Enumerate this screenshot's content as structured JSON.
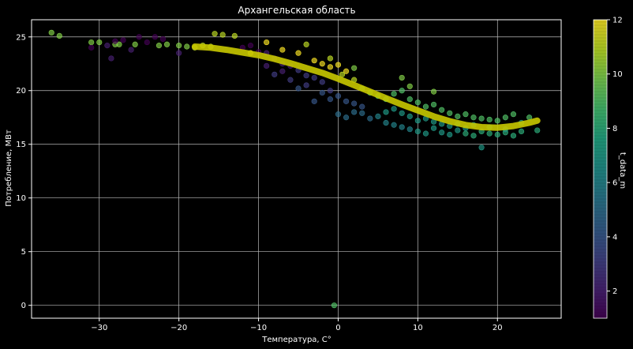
{
  "chart_data": {
    "type": "scatter",
    "title": "Архангельская область",
    "xlabel": "Температура, C°",
    "ylabel": "Потребление, МВт",
    "xlim": [
      -38.5,
      28
    ],
    "ylim": [
      -1.2,
      26.6
    ],
    "xticks": [
      -30,
      -20,
      -10,
      0,
      10,
      20
    ],
    "xtick_labels": [
      "−30",
      "−20",
      "−10",
      "0",
      "10",
      "20"
    ],
    "yticks": [
      0,
      5,
      10,
      15,
      20,
      25
    ],
    "ytick_labels": [
      "0",
      "5",
      "10",
      "15",
      "20",
      "25"
    ],
    "grid": true,
    "background": "#000000",
    "colormap": "viridis",
    "colorbar": {
      "label": "t_data_m",
      "range": [
        1,
        12
      ],
      "ticks": [
        2,
        4,
        6,
        8,
        10,
        12
      ],
      "tick_labels": [
        "2",
        "4",
        "6",
        "8",
        "10",
        "12"
      ]
    },
    "fit_curve": {
      "color": "#c8c800",
      "points": [
        [
          -18,
          24.1
        ],
        [
          -16,
          24.0
        ],
        [
          -14,
          23.8
        ],
        [
          -12,
          23.55
        ],
        [
          -10,
          23.3
        ],
        [
          -8,
          22.95
        ],
        [
          -6,
          22.55
        ],
        [
          -4,
          22.1
        ],
        [
          -2,
          21.65
        ],
        [
          0,
          21.1
        ],
        [
          2,
          20.5
        ],
        [
          4,
          19.9
        ],
        [
          6,
          19.3
        ],
        [
          8,
          18.7
        ],
        [
          10,
          18.15
        ],
        [
          12,
          17.6
        ],
        [
          14,
          17.15
        ],
        [
          16,
          16.8
        ],
        [
          18,
          16.6
        ],
        [
          20,
          16.55
        ],
        [
          22,
          16.7
        ],
        [
          24,
          17.0
        ],
        [
          25,
          17.2
        ]
      ]
    },
    "series": [
      {
        "points": [
          [
            -36,
            25.4,
            10
          ],
          [
            -35,
            25.1,
            10
          ],
          [
            -31,
            24.5,
            10
          ],
          [
            -30,
            24.5,
            10
          ],
          [
            -28,
            24.3,
            10
          ],
          [
            -27.5,
            24.3,
            10
          ],
          [
            -25.5,
            24.3,
            10
          ],
          [
            -22.5,
            24.2,
            10
          ],
          [
            -21.5,
            24.3,
            10
          ],
          [
            -20,
            24.2,
            10
          ],
          [
            -19,
            24.1,
            10
          ],
          [
            -15.5,
            25.3,
            11
          ],
          [
            -14.5,
            25.2,
            11
          ],
          [
            -13,
            25.1,
            11
          ],
          [
            -18,
            24.0,
            11
          ],
          [
            -17,
            24.2,
            11
          ],
          [
            -16,
            24.1,
            11
          ],
          [
            -31,
            24.0,
            1
          ],
          [
            -28,
            24.6,
            1
          ],
          [
            -27,
            24.7,
            1
          ],
          [
            -25,
            25.0,
            1
          ],
          [
            -24,
            24.5,
            1
          ],
          [
            -23,
            25.0,
            1
          ],
          [
            -22,
            24.8,
            1
          ],
          [
            -26,
            23.8,
            2
          ],
          [
            -28.5,
            23.0,
            2
          ],
          [
            -29,
            24.2,
            2
          ],
          [
            -20,
            23.5,
            2
          ],
          [
            -0.5,
            0.0,
            9
          ],
          [
            -12,
            24.0,
            1
          ],
          [
            -11,
            24.2,
            1
          ],
          [
            -10,
            23.6,
            1
          ],
          [
            -9,
            23.5,
            2
          ],
          [
            -8,
            23.0,
            2
          ],
          [
            -7,
            22.5,
            2
          ],
          [
            -6,
            22.3,
            2
          ],
          [
            -5,
            21.9,
            3
          ],
          [
            -4,
            21.4,
            3
          ],
          [
            -3,
            21.2,
            3
          ],
          [
            -2,
            20.8,
            3
          ],
          [
            -1,
            20.0,
            3
          ],
          [
            -11,
            23.5,
            12
          ],
          [
            -9,
            24.5,
            12
          ],
          [
            -7,
            23.8,
            12
          ],
          [
            -5,
            23.5,
            12
          ],
          [
            -3,
            22.8,
            12
          ],
          [
            -2,
            22.5,
            12
          ],
          [
            -1,
            22.2,
            12
          ],
          [
            0,
            22.4,
            12
          ],
          [
            1,
            21.8,
            12
          ],
          [
            2,
            21.0,
            11
          ],
          [
            -4,
            24.3,
            11
          ],
          [
            -1,
            23.0,
            11
          ],
          [
            0.5,
            21.5,
            11
          ],
          [
            -6,
            21.0,
            3
          ],
          [
            -4,
            20.5,
            3
          ],
          [
            -2,
            19.8,
            4
          ],
          [
            -1,
            19.2,
            4
          ],
          [
            -8,
            21.5,
            3
          ],
          [
            -9,
            22.3,
            2
          ],
          [
            -7,
            21.8,
            2
          ],
          [
            0,
            19.5,
            4
          ],
          [
            1,
            19.0,
            4
          ],
          [
            2,
            18.8,
            4
          ],
          [
            3,
            18.5,
            4
          ],
          [
            -3,
            19.0,
            4
          ],
          [
            -5,
            20.2,
            4
          ],
          [
            0,
            17.8,
            5
          ],
          [
            1,
            17.5,
            5
          ],
          [
            2,
            18.0,
            5
          ],
          [
            3,
            17.9,
            5
          ],
          [
            4,
            17.4,
            5
          ],
          [
            5,
            17.6,
            6
          ],
          [
            6,
            17.0,
            6
          ],
          [
            7,
            16.8,
            6
          ],
          [
            8,
            16.6,
            6
          ],
          [
            9,
            16.4,
            6
          ],
          [
            10,
            16.2,
            7
          ],
          [
            11,
            16.0,
            7
          ],
          [
            12,
            16.5,
            7
          ],
          [
            13,
            16.1,
            7
          ],
          [
            14,
            15.9,
            7
          ],
          [
            15,
            16.3,
            7
          ],
          [
            16,
            16.0,
            8
          ],
          [
            17,
            15.8,
            8
          ],
          [
            18,
            16.2,
            8
          ],
          [
            19,
            16.0,
            8
          ],
          [
            20,
            15.9,
            8
          ],
          [
            21,
            16.1,
            8
          ],
          [
            22,
            15.8,
            8
          ],
          [
            18,
            14.7,
            7
          ],
          [
            23,
            16.2,
            8
          ],
          [
            25,
            16.3,
            8
          ],
          [
            3,
            20.2,
            9
          ],
          [
            4,
            19.8,
            9
          ],
          [
            5,
            19.5,
            9
          ],
          [
            6,
            19.2,
            9
          ],
          [
            7,
            19.7,
            9
          ],
          [
            8,
            20.0,
            9
          ],
          [
            9,
            19.2,
            9
          ],
          [
            10,
            18.9,
            9
          ],
          [
            11,
            18.5,
            9
          ],
          [
            12,
            18.7,
            9
          ],
          [
            13,
            18.2,
            9
          ],
          [
            14,
            17.9,
            9
          ],
          [
            15,
            17.6,
            9
          ],
          [
            16,
            17.8,
            9
          ],
          [
            17,
            17.5,
            9
          ],
          [
            18,
            17.4,
            9
          ],
          [
            19,
            17.3,
            9
          ],
          [
            20,
            17.2,
            9
          ],
          [
            21,
            17.5,
            9
          ],
          [
            22,
            17.8,
            9
          ],
          [
            24,
            17.5,
            9
          ],
          [
            8,
            21.2,
            10
          ],
          [
            9,
            20.4,
            10
          ],
          [
            12,
            19.9,
            10
          ],
          [
            2,
            22.1,
            10
          ],
          [
            6,
            18.0,
            7
          ],
          [
            7,
            18.3,
            7
          ],
          [
            8,
            17.9,
            7
          ],
          [
            9,
            17.6,
            7
          ],
          [
            10,
            17.2,
            7
          ],
          [
            11,
            17.4,
            7
          ],
          [
            12,
            17.1,
            7
          ],
          [
            13,
            16.9,
            7
          ],
          [
            14,
            16.7,
            7
          ],
          [
            15,
            16.9,
            7
          ],
          [
            16,
            16.5,
            7
          ],
          [
            17,
            16.8,
            7
          ],
          [
            19,
            16.6,
            7
          ],
          [
            21,
            16.4,
            7
          ],
          [
            23,
            17.0,
            7
          ]
        ]
      }
    ]
  }
}
